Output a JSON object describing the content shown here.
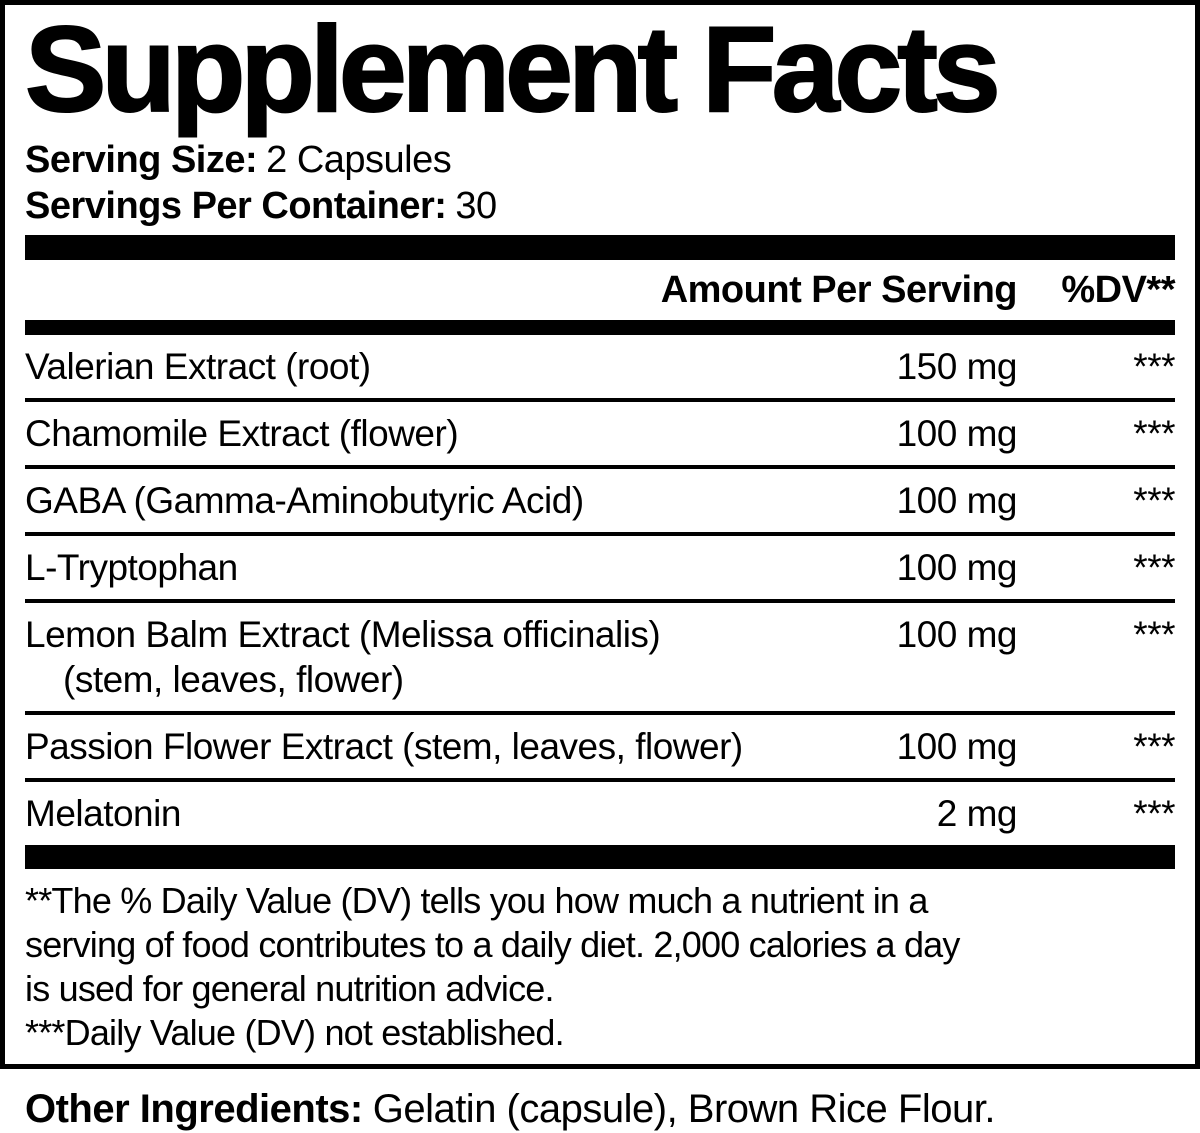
{
  "label": {
    "title": "Supplement Facts",
    "serving": {
      "size_label": "Serving Size:",
      "size_value": "2 Capsules",
      "per_container_label": "Servings Per Container:",
      "per_container_value": "30"
    },
    "header": {
      "amount": "Amount Per Serving",
      "dv": "%DV**"
    },
    "rows": [
      {
        "name": "Valerian Extract (root)",
        "amount": "150 mg",
        "dv": "***"
      },
      {
        "name": "Chamomile Extract (flower)",
        "amount": "100 mg",
        "dv": "***"
      },
      {
        "name": "GABA (Gamma-Aminobutyric Acid)",
        "amount": "100 mg",
        "dv": "***"
      },
      {
        "name": "L-Tryptophan",
        "amount": "100 mg",
        "dv": "***"
      },
      {
        "name": "Lemon Balm Extract (Melissa officinalis)",
        "name2": "(stem, leaves, flower)",
        "amount": "100 mg",
        "dv": "***"
      },
      {
        "name": "Passion Flower Extract (stem, leaves, flower)",
        "amount": "100 mg",
        "dv": "***"
      },
      {
        "name": "Melatonin",
        "amount": "2 mg",
        "dv": "***"
      }
    ],
    "footnotes": [
      "**The % Daily Value (DV) tells you how much a nutrient in a",
      "serving of food contributes to a daily diet. 2,000 calories a day",
      "is used for general nutrition advice.",
      "***Daily Value (DV) not established."
    ],
    "other_ingredients": {
      "label": "Other Ingredients:",
      "value": "Gelatin (capsule), Brown Rice Flour."
    },
    "colors": {
      "ink": "#000000",
      "background": "#ffffff"
    }
  }
}
